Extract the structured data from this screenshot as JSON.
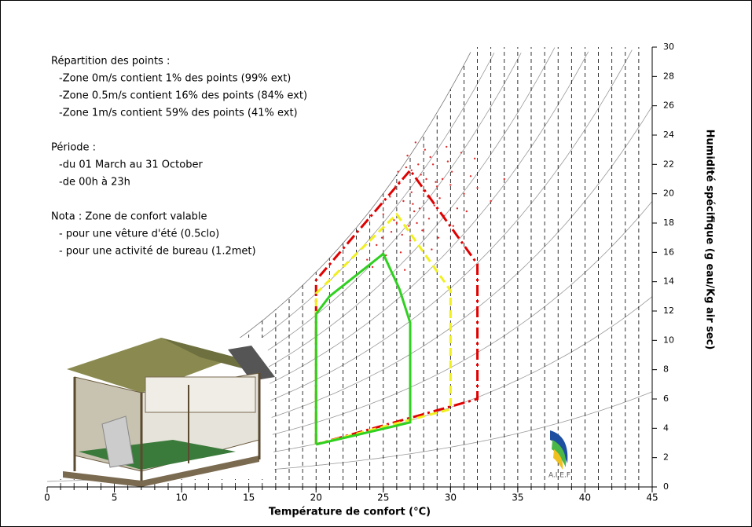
{
  "chart_data": {
    "type": "psychrometric",
    "notes": [
      {
        "heading": "Répartition des points :",
        "lines": [
          "-Zone 0m/s contient 1% des points (99% ext)",
          "-Zone 0.5m/s contient 16% des points (84% ext)",
          "-Zone 1m/s contient 59% des points (41% ext)"
        ]
      },
      {
        "heading": "Période :",
        "lines": [
          "-du 01 March au 31 October",
          "-de 00h à 23h"
        ]
      },
      {
        "heading": "Nota : Zone de confort valable",
        "lines": [
          "- pour une vêture d'été (0.5clo)",
          "- pour une activité de bureau (1.2met)"
        ]
      }
    ],
    "xlabel": "Température de confort (°C)",
    "ylabel": "Humidité spécifique (g eau/Kg air sec)",
    "logo": "A.I.E.F",
    "xlim": [
      0,
      45
    ],
    "xticks": [
      0,
      5,
      10,
      15,
      20,
      25,
      30,
      35,
      40,
      45
    ],
    "xminor_step": 1,
    "ylim": [
      0,
      30
    ],
    "yticks": [
      0,
      2,
      4,
      6,
      8,
      10,
      12,
      14,
      16,
      18,
      20,
      22,
      24,
      26,
      28,
      30
    ],
    "scatter": {
      "color": "#e03030",
      "x": [
        27.1,
        26.5,
        28.2,
        25.8,
        29.0,
        27.6,
        26.9,
        28.8,
        30.1,
        24.9,
        27.3,
        28.5,
        26.2,
        29.5,
        31.0,
        25.5,
        27.9,
        28.1,
        26.7,
        30.5,
        24.5,
        29.8,
        27.0,
        28.9,
        26.0,
        31.5,
        25.2,
        27.4,
        28.4,
        29.2,
        26.4,
        30.8,
        27.8,
        25.9,
        28.6,
        32.0,
        24.2,
        29.4,
        27.2,
        26.8,
        33.0,
        30.2,
        28.0,
        25.6,
        29.7,
        27.5,
        26.1,
        31.2,
        28.7,
        23.8,
        34.0,
        30.0,
        27.7,
        26.3,
        29.1,
        25.0,
        28.3,
        31.8,
        26.6,
        27.1
      ],
      "y": [
        20.1,
        19.5,
        21.0,
        18.2,
        20.5,
        22.0,
        17.8,
        19.2,
        21.5,
        17.0,
        18.8,
        22.5,
        20.8,
        18.5,
        20.0,
        19.8,
        17.5,
        23.0,
        21.8,
        19.0,
        16.5,
        22.2,
        16.8,
        20.8,
        18.0,
        21.2,
        15.8,
        23.5,
        18.3,
        19.7,
        17.2,
        22.8,
        21.3,
        20.5,
        16.2,
        20.4,
        15.0,
        21.0,
        19.3,
        22.6,
        19.5,
        17.8,
        20.2,
        17.4,
        23.2,
        18.0,
        21.5,
        18.8,
        22.0,
        15.5,
        21.0,
        20.6,
        19.0,
        16.0,
        17.0,
        18.6,
        19.8,
        22.4,
        14.8,
        21.6
      ]
    },
    "series": [
      {
        "color": "#e00000",
        "dash": "14 5 3 5",
        "x": [
          20,
          20,
          27,
          32,
          32,
          20
        ],
        "y": [
          2.9,
          14.1,
          21.6,
          15.2,
          6.0,
          2.9
        ]
      },
      {
        "color": "#f0f020",
        "dash": "10 6",
        "x": [
          20,
          20,
          26,
          30,
          30,
          20
        ],
        "y": [
          2.9,
          13.2,
          18.6,
          13.4,
          5.3,
          2.9
        ]
      },
      {
        "color": "#30d020",
        "dash": "none",
        "x": [
          20,
          20,
          21,
          25,
          26.2,
          27,
          27,
          20
        ],
        "y": [
          2.9,
          11.8,
          13.0,
          15.9,
          13.5,
          11.2,
          4.4,
          2.9
        ]
      }
    ]
  }
}
